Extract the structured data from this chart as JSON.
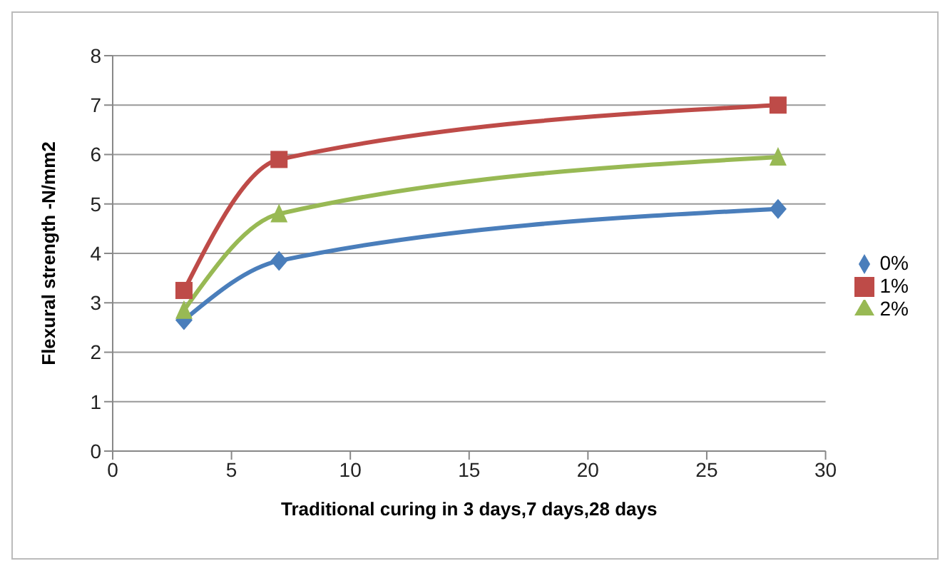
{
  "chart_data": {
    "type": "line",
    "xlabel": "Traditional curing in 3 days,7 days,28 days",
    "ylabel": "Flexural strength -N/mm2",
    "x": [
      3,
      7,
      28
    ],
    "series": [
      {
        "name": "0%",
        "color": "#4a7ebb",
        "values": [
          2.65,
          3.85,
          4.9
        ],
        "marker": "diamond"
      },
      {
        "name": "1%",
        "color": "#be4b48",
        "values": [
          3.25,
          5.9,
          7.0
        ],
        "marker": "square"
      },
      {
        "name": "2%",
        "color": "#98b954",
        "values": [
          2.85,
          4.8,
          5.95
        ],
        "marker": "triangle"
      }
    ],
    "xlim": [
      0,
      30
    ],
    "xticks": [
      0,
      5,
      10,
      15,
      20,
      25,
      30
    ],
    "ylim": [
      0,
      8
    ],
    "yticks": [
      0,
      1,
      2,
      3,
      4,
      5,
      6,
      7,
      8
    ],
    "grid": "y",
    "legend": "right",
    "line_style": "solid"
  }
}
